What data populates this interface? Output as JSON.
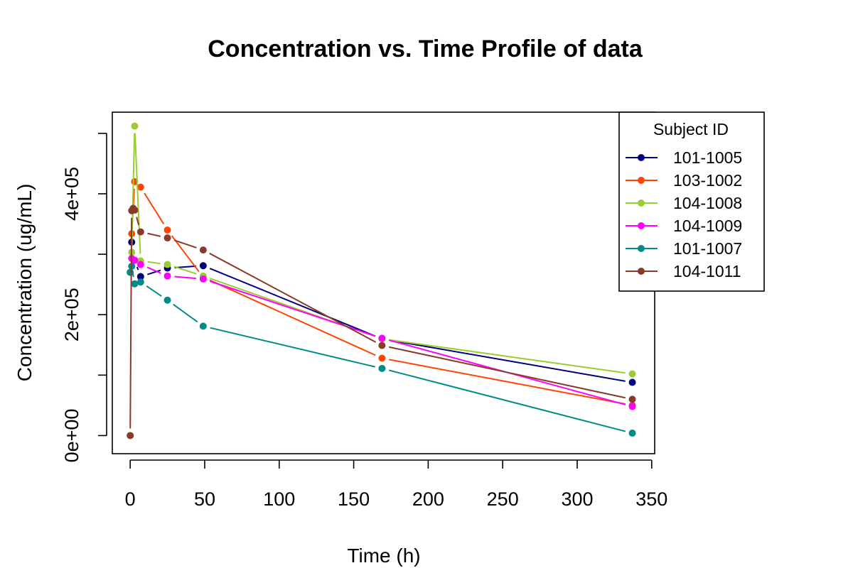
{
  "chart_data": {
    "type": "line",
    "title": "Concentration vs. Time Profile of data",
    "xlabel": "Time (h)",
    "ylabel": "Concentration (ug/mL)",
    "xlim": [
      -12,
      352
    ],
    "ylim": [
      -30000,
      535000
    ],
    "x_ticks": [
      0,
      50,
      100,
      150,
      200,
      250,
      300,
      350
    ],
    "x_tick_labels": [
      "0",
      "50",
      "100",
      "150",
      "200",
      "250",
      "300",
      "350"
    ],
    "y_ticks": [
      0,
      100000,
      200000,
      300000,
      400000,
      500000
    ],
    "y_tick_labels": [
      "0e+00",
      "2e+05",
      "4e+05"
    ],
    "y_labeled_ticks": [
      0,
      200000,
      400000
    ],
    "grid": false,
    "legend": {
      "title": "Subject ID",
      "position": "top-right"
    },
    "series": [
      {
        "name": "101-1005",
        "color": "#000080",
        "x": [
          1,
          3,
          7,
          25,
          49,
          169,
          337
        ],
        "y": [
          320000,
          290000,
          263000,
          277000,
          281000,
          160000,
          88000
        ]
      },
      {
        "name": "103-1002",
        "color": "#FF4500",
        "x": [
          1,
          3,
          7,
          25,
          49,
          169,
          337
        ],
        "y": [
          334000,
          420000,
          411000,
          340000,
          262000,
          128000,
          50000
        ]
      },
      {
        "name": "104-1008",
        "color": "#9ACD32",
        "x": [
          1,
          3,
          7,
          25,
          49,
          169,
          337
        ],
        "y": [
          303000,
          512000,
          289000,
          283000,
          264000,
          160000,
          102000
        ]
      },
      {
        "name": "104-1009",
        "color": "#FF00FF",
        "x": [
          1,
          3,
          7,
          25,
          49,
          169,
          337
        ],
        "y": [
          293000,
          290000,
          283000,
          264000,
          259000,
          161000,
          48000
        ]
      },
      {
        "name": "101-1007",
        "color": "#008B8B",
        "x": [
          0,
          1,
          3,
          7,
          25,
          49,
          169,
          337
        ],
        "y": [
          270000,
          280000,
          251000,
          254000,
          224000,
          181000,
          111000,
          4000
        ]
      },
      {
        "name": "104-1011",
        "color": "#8B3A2A",
        "x": [
          0,
          1,
          2,
          3,
          7,
          25,
          49,
          169,
          337
        ],
        "y": [
          0,
          372000,
          376000,
          373000,
          337000,
          327000,
          307000,
          149000,
          60000
        ]
      }
    ]
  }
}
